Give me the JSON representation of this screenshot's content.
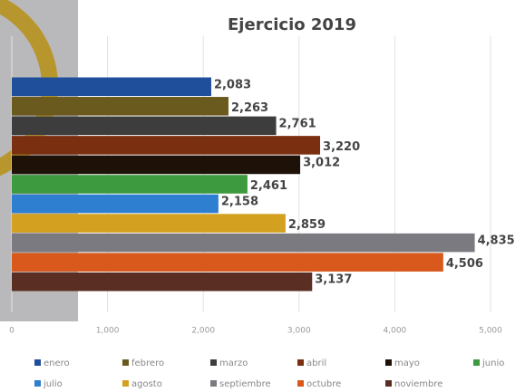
{
  "chart_data": {
    "type": "bar",
    "orientation": "horizontal",
    "title": "Ejercicio 2019",
    "series": [
      {
        "name": "enero",
        "color": "#1f4e9a",
        "values": [
          2083
        ],
        "value_labels": [
          "2,083"
        ]
      },
      {
        "name": "febrero",
        "color": "#6b5a1e",
        "values": [
          2263
        ],
        "value_labels": [
          "2,263"
        ]
      },
      {
        "name": "marzo",
        "color": "#3d3d3d",
        "values": [
          2761
        ],
        "value_labels": [
          "2,761"
        ]
      },
      {
        "name": "abril",
        "color": "#7a3010",
        "values": [
          3220
        ],
        "value_labels": [
          "3,220"
        ]
      },
      {
        "name": "mayo",
        "color": "#1e1108",
        "values": [
          3012
        ],
        "value_labels": [
          "3,012"
        ]
      },
      {
        "name": "junio",
        "color": "#3e9a3e",
        "values": [
          2461
        ],
        "value_labels": [
          "2,461"
        ]
      },
      {
        "name": "julio",
        "color": "#2e7fd0",
        "values": [
          2158
        ],
        "value_labels": [
          "2,158"
        ]
      },
      {
        "name": "agosto",
        "color": "#d4a020",
        "values": [
          2859
        ],
        "value_labels": [
          "2,859"
        ]
      },
      {
        "name": "septiembre",
        "color": "#7a7a80",
        "values": [
          4835
        ],
        "value_labels": [
          "4,835"
        ]
      },
      {
        "name": "octubre",
        "color": "#d9581c",
        "values": [
          4506
        ],
        "value_labels": [
          "4,506"
        ]
      },
      {
        "name": "noviembre",
        "color": "#5a2e22",
        "values": [
          3137
        ],
        "value_labels": [
          "3,137"
        ]
      }
    ],
    "xlim": [
      0,
      5000
    ],
    "xticks": [
      0,
      {
        "value": 1000,
        "label": "1,000"
      },
      {
        "value": 2000,
        "label": "2,000"
      },
      {
        "value": 3000,
        "label": "3,000"
      },
      {
        "value": 4000,
        "label": "4,000"
      },
      {
        "value": 5000,
        "label": "5,000"
      }
    ],
    "grid": true
  }
}
